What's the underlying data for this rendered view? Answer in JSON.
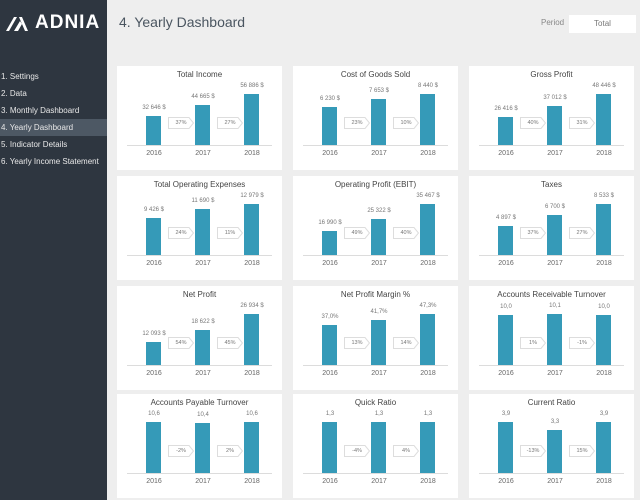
{
  "sidebar": {
    "logo_text": "ADNIA",
    "items": [
      {
        "label": "1. Settings",
        "active": false
      },
      {
        "label": "2. Data",
        "active": false
      },
      {
        "label": "3. Monthly Dashboard",
        "active": false
      },
      {
        "label": "4. Yearly Dashboard",
        "active": true
      },
      {
        "label": "5. Indicator Details",
        "active": false
      },
      {
        "label": "6. Yearly Income Statement",
        "active": false
      }
    ]
  },
  "header": {
    "title": "4. Yearly Dashboard",
    "period_label": "Period",
    "period_value": "Total"
  },
  "colors": {
    "sidebar": "#2e3640",
    "bar": "#359ab8",
    "active_nav": "#4d5864"
  },
  "chart_data": [
    {
      "type": "bar",
      "title": "Total Income",
      "categories": [
        "2016",
        "2017",
        "2018"
      ],
      "values": [
        32646,
        44665,
        56886
      ],
      "labels": [
        "32 646 $",
        "44 665 $",
        "56 886 $"
      ],
      "changes": [
        "37%",
        "27%"
      ]
    },
    {
      "type": "bar",
      "title": "Cost of Goods Sold",
      "categories": [
        "2016",
        "2017",
        "2018"
      ],
      "values": [
        6230,
        7653,
        8440
      ],
      "labels": [
        "6 230 $",
        "7 653 $",
        "8 440 $"
      ],
      "changes": [
        "23%",
        "10%"
      ]
    },
    {
      "type": "bar",
      "title": "Gross Profit",
      "categories": [
        "2016",
        "2017",
        "2018"
      ],
      "values": [
        26416,
        37012,
        48446
      ],
      "labels": [
        "26 416 $",
        "37 012 $",
        "48 446 $"
      ],
      "changes": [
        "40%",
        "31%"
      ]
    },
    {
      "type": "bar",
      "title": "Total Operating Expenses",
      "categories": [
        "2016",
        "2017",
        "2018"
      ],
      "values": [
        9426,
        11690,
        12979
      ],
      "labels": [
        "9 426 $",
        "11 690 $",
        "12 979 $"
      ],
      "changes": [
        "24%",
        "11%"
      ]
    },
    {
      "type": "bar",
      "title": "Operating Profit (EBIT)",
      "categories": [
        "2016",
        "2017",
        "2018"
      ],
      "values": [
        16990,
        25322,
        35467
      ],
      "labels": [
        "16 990 $",
        "25 322 $",
        "35 467 $"
      ],
      "changes": [
        "49%",
        "40%"
      ]
    },
    {
      "type": "bar",
      "title": "Taxes",
      "categories": [
        "2016",
        "2017",
        "2018"
      ],
      "values": [
        4897,
        6700,
        8533
      ],
      "labels": [
        "4 897 $",
        "6 700 $",
        "8 533 $"
      ],
      "changes": [
        "37%",
        "27%"
      ]
    },
    {
      "type": "bar",
      "title": "Net Profit",
      "categories": [
        "2016",
        "2017",
        "2018"
      ],
      "values": [
        12093,
        18622,
        26934
      ],
      "labels": [
        "12 093 $",
        "18 622 $",
        "26 934 $"
      ],
      "changes": [
        "54%",
        "45%"
      ]
    },
    {
      "type": "bar",
      "title": "Net Profit Margin %",
      "categories": [
        "2016",
        "2017",
        "2018"
      ],
      "values": [
        37.0,
        41.7,
        47.3
      ],
      "labels": [
        "37,0%",
        "41,7%",
        "47,3%"
      ],
      "changes": [
        "13%",
        "14%"
      ]
    },
    {
      "type": "bar",
      "title": "Accounts Receivable Turnover",
      "categories": [
        "2016",
        "2017",
        "2018"
      ],
      "values": [
        10.0,
        10.1,
        10.0
      ],
      "labels": [
        "10,0",
        "10,1",
        "10,0"
      ],
      "changes": [
        "1%",
        "-1%"
      ]
    },
    {
      "type": "bar",
      "title": "Accounts Payable Turnover",
      "categories": [
        "2016",
        "2017",
        "2018"
      ],
      "values": [
        10.6,
        10.4,
        10.6
      ],
      "labels": [
        "10,6",
        "10,4",
        "10,6"
      ],
      "changes": [
        "-2%",
        "2%"
      ]
    },
    {
      "type": "bar",
      "title": "Quick Ratio",
      "categories": [
        "2016",
        "2017",
        "2018"
      ],
      "values": [
        1.3,
        1.3,
        1.3
      ],
      "labels": [
        "1,3",
        "1,3",
        "1,3"
      ],
      "changes": [
        "-4%",
        "4%"
      ]
    },
    {
      "type": "bar",
      "title": "Current Ratio",
      "categories": [
        "2016",
        "2017",
        "2018"
      ],
      "values": [
        3.9,
        3.3,
        3.9
      ],
      "labels": [
        "3,9",
        "3,3",
        "3,9"
      ],
      "changes": [
        "-13%",
        "15%"
      ]
    }
  ]
}
